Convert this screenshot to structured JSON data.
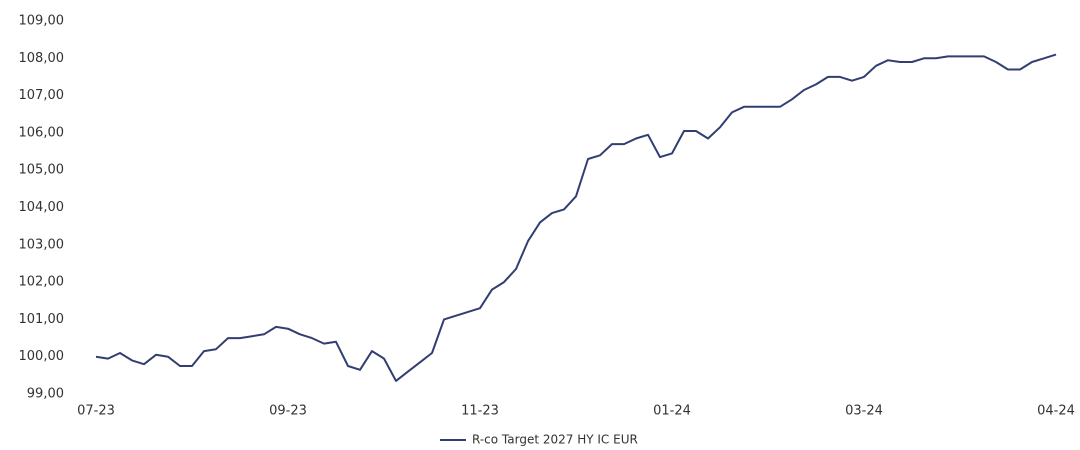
{
  "chart_data": {
    "type": "line",
    "categories": [
      "07-23",
      null,
      null,
      null,
      null,
      null,
      null,
      null,
      null,
      null,
      null,
      null,
      null,
      null,
      null,
      null,
      "09-23",
      null,
      null,
      null,
      null,
      null,
      null,
      null,
      null,
      null,
      null,
      null,
      null,
      null,
      null,
      null,
      "11-23",
      null,
      null,
      null,
      null,
      null,
      null,
      null,
      null,
      null,
      null,
      null,
      null,
      null,
      null,
      null,
      "01-24",
      null,
      null,
      null,
      null,
      null,
      null,
      null,
      null,
      null,
      null,
      null,
      null,
      null,
      null,
      null,
      "03-24",
      null,
      null,
      null,
      null,
      null,
      null,
      null,
      null,
      null,
      null,
      null,
      null,
      null,
      null,
      null,
      "04-24"
    ],
    "series": [
      {
        "name": "R-co Target 2027 HY IC EUR",
        "color": "#323e72",
        "values": [
          100.0,
          99.95,
          100.1,
          99.9,
          99.8,
          100.05,
          100.0,
          99.75,
          99.75,
          100.15,
          100.2,
          100.5,
          100.5,
          100.55,
          100.6,
          100.8,
          100.75,
          100.6,
          100.5,
          100.35,
          100.4,
          99.75,
          99.65,
          100.15,
          99.95,
          99.35,
          99.6,
          99.85,
          100.1,
          101.0,
          101.1,
          101.2,
          101.3,
          101.8,
          102.0,
          102.35,
          103.1,
          103.6,
          103.85,
          103.95,
          104.3,
          105.3,
          105.4,
          105.7,
          105.7,
          105.85,
          105.95,
          105.35,
          105.45,
          106.05,
          106.05,
          105.85,
          106.15,
          106.55,
          106.7,
          106.7,
          106.7,
          106.7,
          106.9,
          107.15,
          107.3,
          107.5,
          107.5,
          107.4,
          107.5,
          107.8,
          107.95,
          107.9,
          107.9,
          108.0,
          108.0,
          108.05,
          108.05,
          108.05,
          108.05,
          107.9,
          107.7,
          107.7,
          107.9,
          108.0,
          108.1
        ]
      }
    ],
    "ylim": [
      99,
      109
    ],
    "yticks": [
      {
        "value": 99,
        "label": "99,00"
      },
      {
        "value": 100,
        "label": "100,00"
      },
      {
        "value": 101,
        "label": "101,00"
      },
      {
        "value": 102,
        "label": "102,00"
      },
      {
        "value": 103,
        "label": "103,00"
      },
      {
        "value": 104,
        "label": "104,00"
      },
      {
        "value": 105,
        "label": "105,00"
      },
      {
        "value": 106,
        "label": "106,00"
      },
      {
        "value": 107,
        "label": "107,00"
      },
      {
        "value": 108,
        "label": "108,00"
      },
      {
        "value": 109,
        "label": "109,00"
      }
    ],
    "grid": false,
    "legend": "bottom"
  }
}
